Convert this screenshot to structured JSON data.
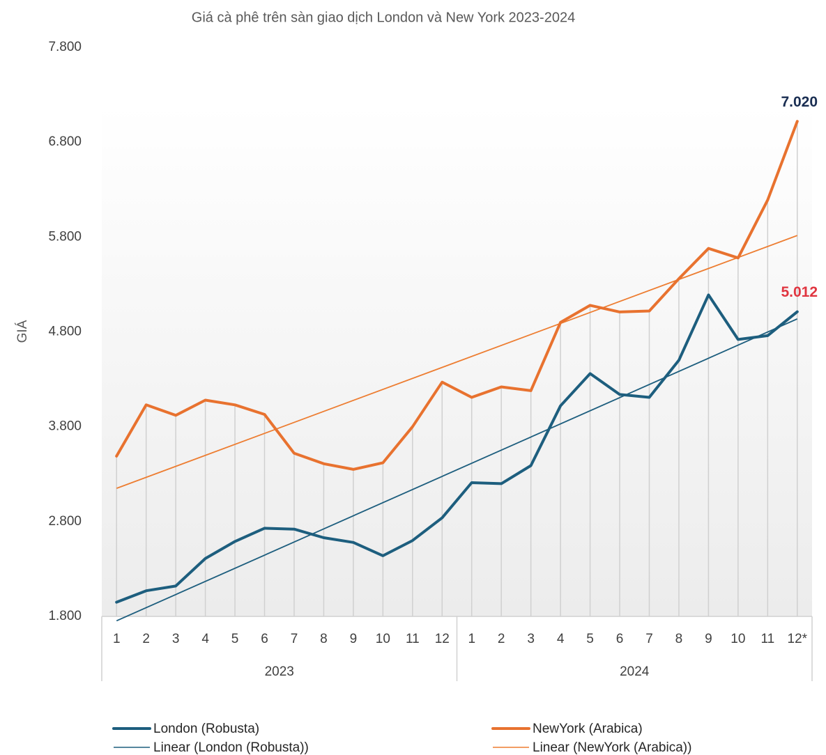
{
  "chart_data": {
    "type": "line",
    "title": "Giá cà phê trên sàn giao dịch London và New York 2023-2024",
    "y_label": "GIÁ",
    "categories": [
      "1",
      "2",
      "3",
      "4",
      "5",
      "6",
      "7",
      "8",
      "9",
      "10",
      "11",
      "12",
      "1",
      "2",
      "3",
      "4",
      "5",
      "6",
      "7",
      "8",
      "9",
      "10",
      "11",
      "12*"
    ],
    "groups": [
      "2023",
      "2024"
    ],
    "ylim": [
      1800,
      7800
    ],
    "yticks": [
      {
        "value": 1800,
        "label": "1.800"
      },
      {
        "value": 2800,
        "label": "2.800"
      },
      {
        "value": 3800,
        "label": "3.800"
      },
      {
        "value": 4800,
        "label": "4.800"
      },
      {
        "value": 5800,
        "label": "5.800"
      },
      {
        "value": 6800,
        "label": "6.800"
      },
      {
        "value": 7800,
        "label": "7.800"
      }
    ],
    "series": [
      {
        "name": "London (Robusta)",
        "color": "#1d5e7e",
        "values": [
          1950,
          2070,
          2120,
          2410,
          2590,
          2730,
          2720,
          2630,
          2580,
          2440,
          2600,
          2840,
          3210,
          3200,
          3390,
          4020,
          4360,
          4140,
          4110,
          4500,
          5190,
          4720,
          4760,
          5012
        ],
        "value_labels": [
          null,
          null,
          null,
          null,
          null,
          null,
          null,
          null,
          null,
          null,
          null,
          null,
          null,
          null,
          null,
          null,
          null,
          null,
          null,
          null,
          null,
          null,
          null,
          "5.012"
        ],
        "label_color": "#e03540",
        "trendline": {
          "name": "Linear (London (Robusta))",
          "color": "#1d5e7e"
        }
      },
      {
        "name": "NewYork (Arabica)",
        "color": "#e8722f",
        "values": [
          3490,
          4030,
          3920,
          4080,
          4030,
          3930,
          3520,
          3410,
          3350,
          3420,
          3800,
          4270,
          4110,
          4220,
          4180,
          4900,
          5080,
          5010,
          5020,
          5360,
          5680,
          5580,
          6190,
          7020
        ],
        "value_labels": [
          null,
          null,
          null,
          null,
          null,
          null,
          null,
          null,
          null,
          null,
          null,
          null,
          null,
          null,
          null,
          null,
          null,
          null,
          null,
          null,
          null,
          null,
          null,
          "7.020"
        ],
        "label_color": "#1a2e52",
        "trendline": {
          "name": "Linear (NewYork (Arabica))",
          "color": "#ed7d31"
        }
      }
    ]
  }
}
